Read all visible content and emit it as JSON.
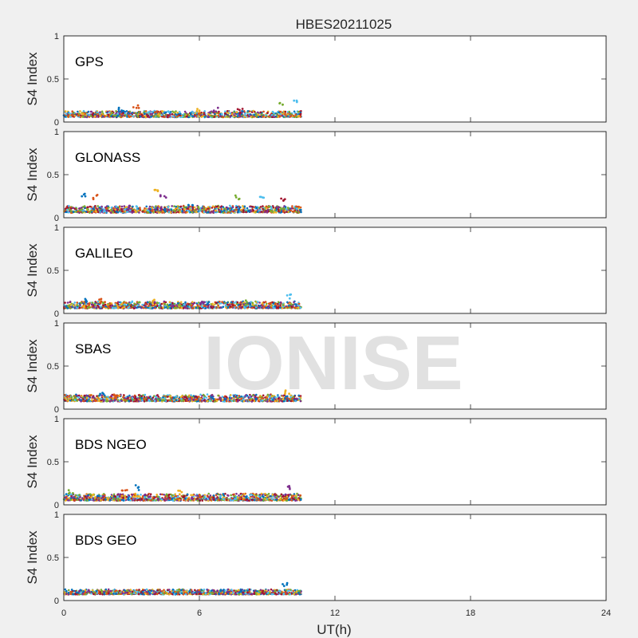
{
  "title": "HBES20211025",
  "watermark": "IONISE",
  "xlabel": "UT(h)",
  "xlim": [
    0,
    24
  ],
  "xticks": [
    "0",
    "6",
    "12",
    "18",
    "24"
  ],
  "ylabel": "S4 Index",
  "yticks": [
    "0",
    "0.5",
    "1"
  ],
  "colors": [
    "#0072BD",
    "#D95319",
    "#EDB120",
    "#7E2F8E",
    "#77AC30",
    "#4DBEEE",
    "#A2142F"
  ],
  "chart_data": [
    {
      "type": "scatter",
      "label": "GPS",
      "ylim": [
        0,
        1
      ],
      "x_range": [
        0,
        10.5
      ],
      "baseline": [
        0.03,
        0.13
      ],
      "spikes": [
        [
          2.5,
          0.18
        ],
        [
          3.2,
          0.2
        ],
        [
          6.0,
          0.16
        ],
        [
          6.7,
          0.17
        ],
        [
          9.6,
          0.25
        ],
        [
          10.3,
          0.27
        ],
        [
          7.8,
          0.16
        ]
      ]
    },
    {
      "type": "scatter",
      "label": "GLONASS",
      "ylim": [
        0,
        1
      ],
      "x_range": [
        0,
        10.5
      ],
      "baseline": [
        0.03,
        0.14
      ],
      "spikes": [
        [
          0.9,
          0.3
        ],
        [
          1.4,
          0.27
        ],
        [
          4.1,
          0.33
        ],
        [
          4.4,
          0.27
        ],
        [
          7.7,
          0.26
        ],
        [
          8.8,
          0.28
        ],
        [
          9.7,
          0.25
        ],
        [
          5.6,
          0.2
        ]
      ]
    },
    {
      "type": "scatter",
      "label": "GALILEO",
      "ylim": [
        0,
        1
      ],
      "x_range": [
        0,
        10.5
      ],
      "baseline": [
        0.03,
        0.14
      ],
      "spikes": [
        [
          1.0,
          0.19
        ],
        [
          1.6,
          0.17
        ],
        [
          4.0,
          0.16
        ],
        [
          6.1,
          0.16
        ],
        [
          8.0,
          0.15
        ],
        [
          10.0,
          0.22
        ]
      ]
    },
    {
      "type": "scatter",
      "label": "SBAS",
      "ylim": [
        0,
        1
      ],
      "x_range": [
        0,
        10.5
      ],
      "baseline": [
        0.06,
        0.17
      ],
      "spikes": [
        [
          1.7,
          0.19
        ],
        [
          2.3,
          0.19
        ],
        [
          9.9,
          0.22
        ]
      ]
    },
    {
      "type": "scatter",
      "label": "BDS NGEO",
      "ylim": [
        0,
        1
      ],
      "x_range": [
        0,
        10.5
      ],
      "baseline": [
        0.02,
        0.13
      ],
      "spikes": [
        [
          3.2,
          0.23
        ],
        [
          2.7,
          0.2
        ],
        [
          5.1,
          0.18
        ],
        [
          9.9,
          0.24
        ],
        [
          0.3,
          0.17
        ]
      ]
    },
    {
      "type": "scatter",
      "label": "BDS GEO",
      "ylim": [
        0,
        1
      ],
      "x_range": [
        0,
        10.5
      ],
      "baseline": [
        0.05,
        0.13
      ],
      "spikes": [
        [
          9.8,
          0.21
        ]
      ]
    }
  ]
}
